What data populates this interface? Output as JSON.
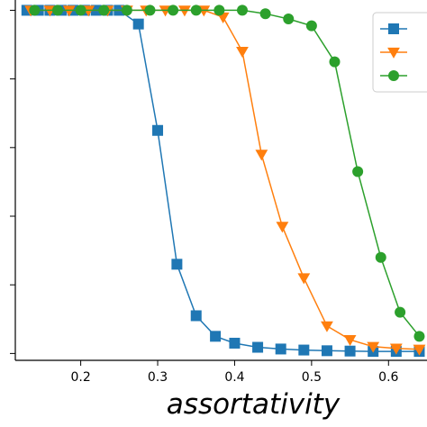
{
  "chart_data": {
    "type": "line",
    "title": "",
    "xlabel": "assortativity",
    "ylabel": "",
    "xlim": [
      0.115,
      0.65
    ],
    "ylim": [
      -0.02,
      1.03
    ],
    "x_ticks": [
      0.2,
      0.3,
      0.4,
      0.5,
      0.6
    ],
    "x_tick_labels": [
      "0.2",
      "0.3",
      "0.4",
      "0.5",
      "0.6"
    ],
    "y_ticks": [
      0.0,
      0.2,
      0.4,
      0.6,
      0.8,
      1.0
    ],
    "y_tick_labels": [
      "",
      "",
      "",
      "",
      "",
      ""
    ],
    "grid": false,
    "legend_position": "top-right",
    "series": [
      {
        "color": "#1f77b4",
        "marker": "square",
        "x": [
          0.13,
          0.145,
          0.16,
          0.175,
          0.19,
          0.205,
          0.22,
          0.235,
          0.25,
          0.275,
          0.3,
          0.325,
          0.35,
          0.375,
          0.4,
          0.43,
          0.46,
          0.49,
          0.52,
          0.55,
          0.58,
          0.61,
          0.64
        ],
        "y": [
          1.0,
          1.0,
          1.0,
          1.0,
          1.0,
          1.0,
          1.0,
          1.0,
          1.0,
          0.96,
          0.65,
          0.26,
          0.11,
          0.05,
          0.03,
          0.018,
          0.013,
          0.01,
          0.008,
          0.007,
          0.006,
          0.006,
          0.006
        ]
      },
      {
        "color": "#ff7f0e",
        "marker": "triangle-down",
        "x": [
          0.135,
          0.16,
          0.185,
          0.21,
          0.235,
          0.26,
          0.285,
          0.31,
          0.335,
          0.36,
          0.385,
          0.41,
          0.435,
          0.462,
          0.49,
          0.52,
          0.55,
          0.58,
          0.61,
          0.64
        ],
        "y": [
          1.0,
          1.0,
          1.0,
          1.0,
          1.0,
          1.0,
          1.0,
          1.0,
          1.0,
          1.0,
          0.98,
          0.88,
          0.58,
          0.37,
          0.22,
          0.08,
          0.04,
          0.02,
          0.015,
          0.012
        ]
      },
      {
        "color": "#2ca02c",
        "marker": "circle",
        "x": [
          0.14,
          0.17,
          0.2,
          0.23,
          0.26,
          0.29,
          0.32,
          0.35,
          0.38,
          0.41,
          0.44,
          0.47,
          0.5,
          0.53,
          0.56,
          0.59,
          0.615,
          0.64
        ],
        "y": [
          1.0,
          1.0,
          1.0,
          1.0,
          1.0,
          1.0,
          1.0,
          1.0,
          1.0,
          1.0,
          0.99,
          0.975,
          0.955,
          0.85,
          0.53,
          0.28,
          0.12,
          0.05
        ]
      }
    ],
    "legend_entries": [
      "",
      "",
      ""
    ]
  }
}
